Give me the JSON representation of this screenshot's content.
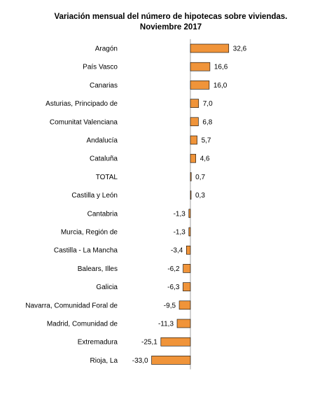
{
  "chart_data": {
    "type": "bar",
    "orientation": "horizontal",
    "title": "Variación  mensual del número de hipotecas sobre viviendas.",
    "subtitle": "Noviembre 2017",
    "categories": [
      "Aragón",
      "País Vasco",
      "Canarias",
      "Asturias, Principado de",
      "Comunitat Valenciana",
      "Andalucía",
      "Cataluña",
      "TOTAL",
      "Castilla y León",
      "Cantabria",
      "Murcia, Región de",
      "Castilla - La Mancha",
      "Balears, Illes",
      "Galicia",
      "Navarra, Comunidad Foral de",
      "Madrid, Comunidad de",
      "Extremadura",
      "Rioja, La"
    ],
    "values": [
      32.6,
      16.6,
      16.0,
      7.0,
      6.8,
      5.7,
      4.6,
      0.7,
      0.3,
      -1.3,
      -1.3,
      -3.4,
      -6.2,
      -6.3,
      -9.5,
      -11.3,
      -25.1,
      -33.0
    ],
    "value_labels": [
      "32,6",
      "16,6",
      "16,0",
      "7,0",
      "6,8",
      "5,7",
      "4,6",
      "0,7",
      "0,3",
      "-1,3",
      "-1,3",
      "-3,4",
      "-6,2",
      "-6,3",
      "-9,5",
      "-11,3",
      "-25,1",
      "-33,0"
    ],
    "bar_color": "#f0943a",
    "bar_stroke": "#000000",
    "grid": false,
    "legend": "none"
  }
}
